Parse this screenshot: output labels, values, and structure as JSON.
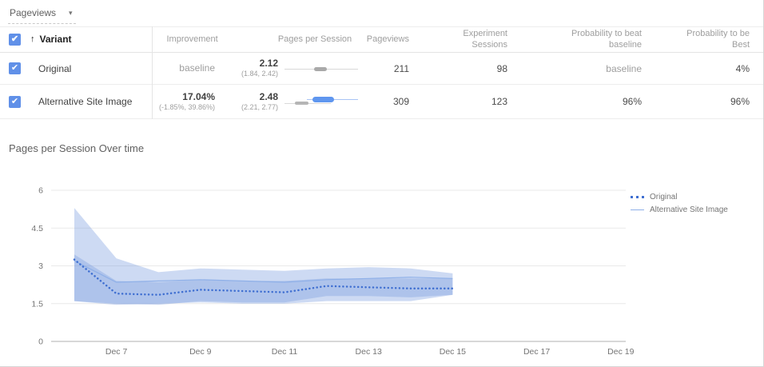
{
  "dropdown": {
    "label": "Pageviews"
  },
  "table": {
    "headers": {
      "variant": "Variant",
      "improvement": "Improvement",
      "pages_per_session": "Pages per Session",
      "pageviews": "Pageviews",
      "sessions_line1": "Experiment",
      "sessions_line2": "Sessions",
      "beat_line1": "Probability to beat",
      "beat_line2": "baseline",
      "best_line1": "Probability to be",
      "best_line2": "Best"
    },
    "rows": [
      {
        "name": "Original",
        "improvement": "baseline",
        "improvement_sub": "",
        "pps": "2.12",
        "pps_ci": "(1.84, 2.42)",
        "pageviews": "211",
        "sessions": "98",
        "beat_baseline": "baseline",
        "best": "4%"
      },
      {
        "name": "Alternative Site Image",
        "improvement": "17.04%",
        "improvement_sub": "(-1.85%, 39.86%)",
        "pps": "2.48",
        "pps_ci": "(2.21, 2.77)",
        "pageviews": "309",
        "sessions": "123",
        "beat_baseline": "96%",
        "best": "96%"
      }
    ]
  },
  "chart_data": {
    "type": "line",
    "title": "Pages per Session Over time",
    "x": [
      "Dec 6",
      "Dec 7",
      "Dec 8",
      "Dec 9",
      "Dec 10",
      "Dec 11",
      "Dec 12",
      "Dec 13",
      "Dec 14",
      "Dec 15"
    ],
    "x_axis_ticks": [
      "Dec 7",
      "Dec 9",
      "Dec 11",
      "Dec 13",
      "Dec 15",
      "Dec 17",
      "Dec 19"
    ],
    "xlabel": "",
    "ylabel": "",
    "ylim": [
      0,
      6
    ],
    "y_ticks": [
      0,
      1.5,
      3,
      4.5,
      6
    ],
    "grid": true,
    "legend_position": "right",
    "series": [
      {
        "name": "Original",
        "style": "dotted",
        "color": "#3f6fd1",
        "band_color": "#7b9fe0",
        "values": [
          3.25,
          1.9,
          1.85,
          2.05,
          2.0,
          1.95,
          2.2,
          2.15,
          2.1,
          2.1
        ],
        "band_upper": [
          3.45,
          2.4,
          2.35,
          2.45,
          2.4,
          2.4,
          2.5,
          2.5,
          2.5,
          2.5
        ],
        "band_lower": [
          1.6,
          1.5,
          1.45,
          1.6,
          1.55,
          1.55,
          1.8,
          1.8,
          1.75,
          1.85
        ]
      },
      {
        "name": "Alternative Site Image",
        "style": "solid",
        "color": "#8fb0e8",
        "band_color": "#7b9fe0",
        "values": [
          3.2,
          2.35,
          2.4,
          2.45,
          2.4,
          2.35,
          2.45,
          2.5,
          2.55,
          2.5
        ],
        "band_upper": [
          5.3,
          3.3,
          2.75,
          2.9,
          2.85,
          2.8,
          2.9,
          2.95,
          2.9,
          2.7
        ],
        "band_lower": [
          1.6,
          1.45,
          1.5,
          1.55,
          1.5,
          1.5,
          1.6,
          1.6,
          1.6,
          1.85
        ]
      }
    ]
  }
}
